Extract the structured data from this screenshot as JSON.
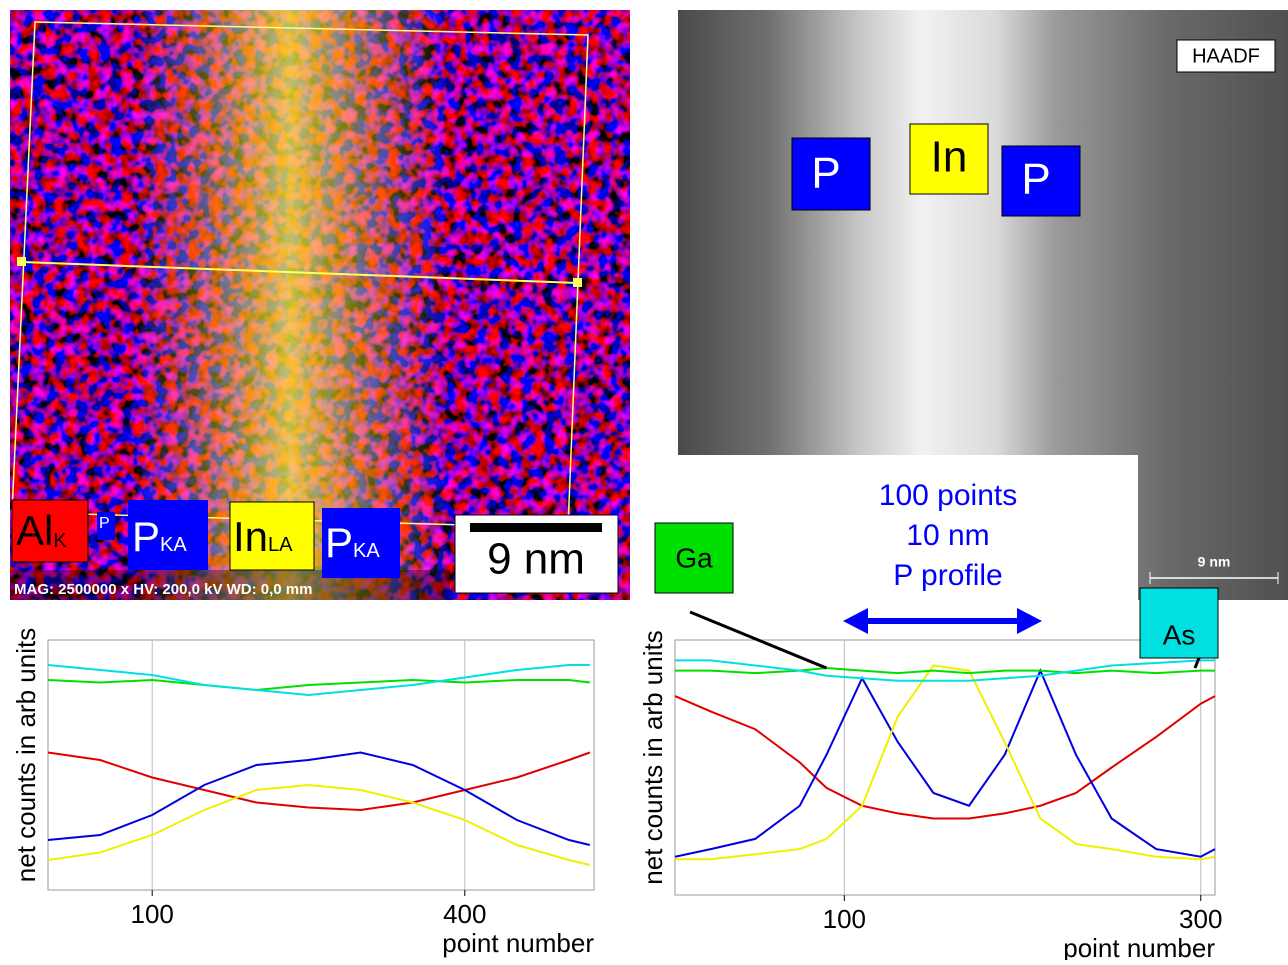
{
  "figure": {
    "map_labels": [
      {
        "main": "Al",
        "sub": "K"
      },
      {
        "main": "P"
      },
      {
        "main": "P",
        "sub": "KA"
      },
      {
        "main": "In",
        "sub": "LA"
      },
      {
        "main": "P",
        "sub": "KA"
      }
    ],
    "map_scale": "9 nm",
    "map_info": "MAG: 2500000 x  HV: 200,0 kV  WD: 0,0 mm",
    "haadf_title": "HAADF",
    "haadf_labels": [
      "P",
      "In",
      "P"
    ],
    "haadf_scale": "9 nm"
  },
  "chart_data": [
    {
      "type": "line",
      "x_label": "point number",
      "y_label": "net counts in arb units",
      "xlim": [
        0,
        524
      ],
      "ylim": [
        0,
        100
      ],
      "xticks": [
        100,
        400
      ],
      "grid": true,
      "x": [
        0,
        50,
        100,
        150,
        200,
        250,
        300,
        350,
        400,
        450,
        500,
        520
      ],
      "series": [
        {
          "color": "#e00000",
          "values": [
            55,
            52,
            45,
            40,
            35,
            33,
            32,
            35,
            40,
            45,
            52,
            55
          ]
        },
        {
          "color": "#0000e0",
          "values": [
            20,
            22,
            30,
            42,
            50,
            52,
            55,
            50,
            40,
            28,
            20,
            18
          ]
        },
        {
          "color": "#f0f000",
          "values": [
            12,
            15,
            22,
            32,
            40,
            42,
            40,
            35,
            28,
            18,
            12,
            10
          ]
        },
        {
          "color": "#00e000",
          "values": [
            84,
            83,
            84,
            82,
            80,
            82,
            83,
            84,
            83,
            84,
            84,
            83
          ]
        },
        {
          "color": "#00e0e0",
          "values": [
            90,
            88,
            86,
            82,
            80,
            78,
            80,
            82,
            85,
            88,
            90,
            90
          ]
        }
      ]
    },
    {
      "type": "line",
      "x_label": "point number",
      "y_label": "net counts in arb units",
      "annotations": [
        "100 points",
        "10 nm",
        "P profile"
      ],
      "xlim": [
        5,
        308
      ],
      "ylim": [
        0,
        100
      ],
      "xticks": [
        100,
        300
      ],
      "grid": true,
      "x": [
        5,
        25,
        50,
        75,
        90,
        110,
        130,
        150,
        170,
        190,
        210,
        230,
        250,
        275,
        300,
        308
      ],
      "series": [
        {
          "color": "#e00000",
          "values": [
            78,
            72,
            65,
            52,
            42,
            35,
            32,
            30,
            30,
            32,
            35,
            40,
            50,
            62,
            75,
            78
          ]
        },
        {
          "color": "#0000e0",
          "values": [
            15,
            18,
            22,
            35,
            55,
            85,
            60,
            40,
            35,
            55,
            88,
            55,
            30,
            18,
            15,
            18
          ]
        },
        {
          "color": "#f0f000",
          "values": [
            14,
            14,
            16,
            18,
            22,
            35,
            70,
            90,
            88,
            60,
            30,
            20,
            18,
            15,
            14,
            15
          ]
        },
        {
          "name": "Ga",
          "color": "#00e000",
          "values": [
            88,
            88,
            87,
            88,
            89,
            88,
            87,
            88,
            87,
            88,
            88,
            87,
            88,
            87,
            88,
            88
          ]
        },
        {
          "name": "As",
          "color": "#00e0e0",
          "values": [
            92,
            92,
            90,
            88,
            86,
            85,
            84,
            84,
            84,
            85,
            86,
            88,
            90,
            91,
            92,
            92
          ]
        }
      ]
    }
  ]
}
